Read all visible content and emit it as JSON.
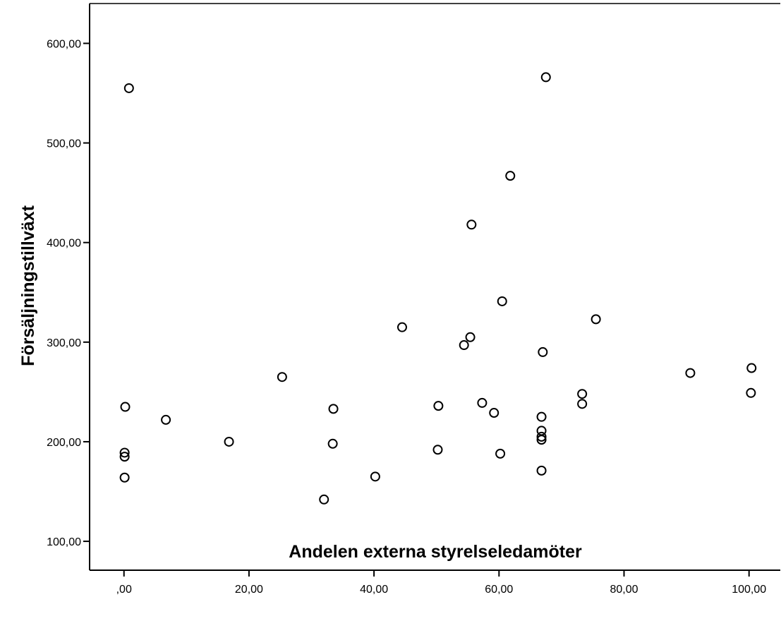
{
  "chart_data": {
    "type": "scatter",
    "title": "",
    "xlabel": "Andelen externa styrelseledamöter",
    "ylabel": "Försäljningstillväxt",
    "xlim": [
      -5.5,
      105
    ],
    "ylim": [
      71,
      640
    ],
    "x_ticks": [
      0,
      20,
      40,
      60,
      80,
      100
    ],
    "x_tick_labels": [
      ",00",
      "20,00",
      "40,00",
      "60,00",
      "80,00",
      "100,00"
    ],
    "y_ticks": [
      100,
      200,
      300,
      400,
      500,
      600
    ],
    "y_tick_labels": [
      "100,00",
      "200,00",
      "300,00",
      "400,00",
      "500,00",
      "600,00"
    ],
    "grid": false,
    "legend": "none",
    "marker": "hollow-circle",
    "colors": {
      "axis": "#000000",
      "marker": "#000000",
      "background": "#ffffff"
    },
    "points": [
      {
        "x": 0.8,
        "y": 555
      },
      {
        "x": 67.5,
        "y": 566
      },
      {
        "x": 61.8,
        "y": 467
      },
      {
        "x": 55.6,
        "y": 418
      },
      {
        "x": 60.5,
        "y": 341
      },
      {
        "x": 75.5,
        "y": 323
      },
      {
        "x": 44.5,
        "y": 315
      },
      {
        "x": 55.4,
        "y": 305
      },
      {
        "x": 54.4,
        "y": 297
      },
      {
        "x": 67.0,
        "y": 290
      },
      {
        "x": 90.6,
        "y": 269
      },
      {
        "x": 100.4,
        "y": 274
      },
      {
        "x": 25.3,
        "y": 265
      },
      {
        "x": 100.3,
        "y": 249
      },
      {
        "x": 73.3,
        "y": 248
      },
      {
        "x": 57.3,
        "y": 239
      },
      {
        "x": 73.3,
        "y": 238
      },
      {
        "x": 0.2,
        "y": 235
      },
      {
        "x": 50.3,
        "y": 236
      },
      {
        "x": 33.5,
        "y": 233
      },
      {
        "x": 59.2,
        "y": 229
      },
      {
        "x": 66.8,
        "y": 225
      },
      {
        "x": 6.7,
        "y": 222
      },
      {
        "x": 66.8,
        "y": 211
      },
      {
        "x": 66.8,
        "y": 205
      },
      {
        "x": 66.8,
        "y": 202
      },
      {
        "x": 16.8,
        "y": 200
      },
      {
        "x": 33.4,
        "y": 198
      },
      {
        "x": 50.2,
        "y": 192
      },
      {
        "x": 0.1,
        "y": 189
      },
      {
        "x": 60.2,
        "y": 188
      },
      {
        "x": 0.1,
        "y": 185
      },
      {
        "x": 66.8,
        "y": 171
      },
      {
        "x": 40.2,
        "y": 165
      },
      {
        "x": 0.1,
        "y": 164
      },
      {
        "x": 32.0,
        "y": 142
      }
    ]
  }
}
